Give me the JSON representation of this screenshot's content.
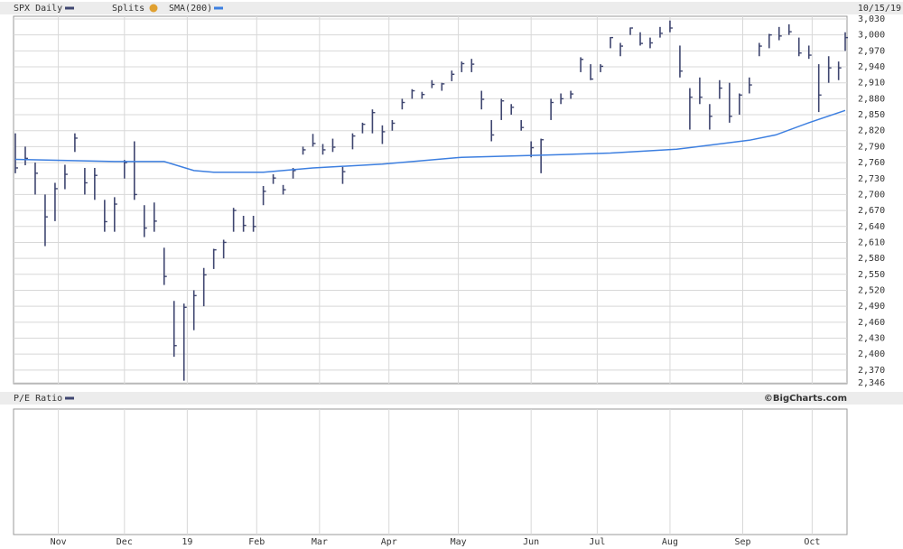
{
  "chart_data": {
    "type": "ohlc",
    "title": "SPX Daily",
    "annotation": "Splits",
    "date_label": "10/15/19",
    "lower_panel_title": "P/E Ratio",
    "credit": "©BigCharts.com",
    "color": "#3f4670",
    "grid": true,
    "x": [
      0,
      3,
      6,
      9,
      12,
      15,
      18,
      21,
      24,
      27,
      30,
      33,
      36,
      39,
      42,
      45,
      48,
      51,
      54,
      57,
      60,
      63,
      66,
      69,
      72,
      75,
      78,
      81,
      84,
      87,
      90,
      93,
      96,
      99,
      102,
      105,
      108,
      111,
      114,
      117,
      120,
      123,
      126,
      129,
      132,
      135,
      138,
      141,
      144,
      147,
      150,
      153,
      156,
      159,
      162,
      165,
      168,
      171,
      174,
      177,
      180,
      183,
      186,
      189,
      192,
      195,
      198,
      201,
      204,
      207,
      210,
      213,
      216,
      219,
      222,
      225,
      228,
      231,
      234,
      237,
      240,
      243,
      246,
      249,
      251
    ],
    "high": [
      2815,
      2790,
      2760,
      2700,
      2722,
      2756,
      2815,
      2750,
      2750,
      2690,
      2695,
      2765,
      2800,
      2680,
      2685,
      2600,
      2500,
      2495,
      2520,
      2562,
      2598,
      2615,
      2675,
      2660,
      2660,
      2716,
      2738,
      2718,
      2750,
      2790,
      2814,
      2795,
      2805,
      2752,
      2815,
      2835,
      2860,
      2830,
      2840,
      2880,
      2898,
      2893,
      2915,
      2910,
      2933,
      2950,
      2955,
      2895,
      2840,
      2880,
      2870,
      2840,
      2800,
      2805,
      2880,
      2890,
      2895,
      2958,
      2945,
      2945,
      2996,
      2985,
      3014,
      3005,
      2995,
      3015,
      3027,
      2980,
      2900,
      2920,
      2870,
      2915,
      2910,
      2890,
      2920,
      2985,
      3002,
      3015,
      3020,
      2995,
      2980,
      2945,
      2960,
      2950,
      3005
    ],
    "low": [
      2740,
      2755,
      2700,
      2603,
      2650,
      2710,
      2780,
      2700,
      2690,
      2630,
      2630,
      2730,
      2690,
      2620,
      2630,
      2530,
      2395,
      2350,
      2445,
      2490,
      2560,
      2580,
      2630,
      2630,
      2630,
      2680,
      2720,
      2700,
      2730,
      2775,
      2790,
      2775,
      2780,
      2720,
      2785,
      2815,
      2815,
      2795,
      2820,
      2860,
      2880,
      2880,
      2900,
      2895,
      2913,
      2930,
      2930,
      2860,
      2800,
      2840,
      2850,
      2820,
      2770,
      2740,
      2840,
      2870,
      2880,
      2930,
      2915,
      2930,
      2975,
      2960,
      3000,
      2980,
      2975,
      2995,
      3005,
      2920,
      2822,
      2870,
      2822,
      2880,
      2835,
      2850,
      2890,
      2960,
      2975,
      2990,
      3000,
      2960,
      2955,
      2855,
      2910,
      2915,
      2970
    ],
    "close": [
      2750,
      2768,
      2740,
      2658,
      2711,
      2738,
      2806,
      2722,
      2736,
      2649,
      2682,
      2760,
      2700,
      2637,
      2650,
      2546,
      2416,
      2488,
      2510,
      2549,
      2596,
      2610,
      2670,
      2642,
      2640,
      2706,
      2731,
      2709,
      2745,
      2784,
      2796,
      2784,
      2789,
      2743,
      2810,
      2832,
      2854,
      2818,
      2834,
      2873,
      2895,
      2888,
      2907,
      2908,
      2926,
      2946,
      2945,
      2879,
      2812,
      2876,
      2864,
      2826,
      2788,
      2803,
      2873,
      2880,
      2889,
      2954,
      2917,
      2941,
      2995,
      2979,
      3013,
      2984,
      2985,
      3003,
      3013,
      2932,
      2883,
      2883,
      2847,
      2900,
      2847,
      2887,
      2906,
      2979,
      3000,
      2998,
      3006,
      2966,
      2962,
      2887,
      2938,
      2938,
      2995
    ],
    "sma": {
      "name": "SMA(200)",
      "color": "#3d7fe0",
      "x": [
        0,
        30,
        45,
        54,
        60,
        75,
        90,
        111,
        135,
        165,
        180,
        200,
        222,
        230,
        240,
        251
      ],
      "values": [
        2766,
        2762,
        2762,
        2745,
        2742,
        2742,
        2750,
        2757,
        2770,
        2775,
        2778,
        2785,
        2802,
        2812,
        2835,
        2858
      ]
    },
    "xlim": [
      0,
      251
    ],
    "xticks": [
      {
        "value": 13,
        "label": "Nov"
      },
      {
        "value": 33,
        "label": "Dec"
      },
      {
        "value": 52,
        "label": "19"
      },
      {
        "value": 73,
        "label": "Feb"
      },
      {
        "value": 92,
        "label": "Mar"
      },
      {
        "value": 113,
        "label": "Apr"
      },
      {
        "value": 134,
        "label": "May"
      },
      {
        "value": 156,
        "label": "Jun"
      },
      {
        "value": 176,
        "label": "Jul"
      },
      {
        "value": 198,
        "label": "Aug"
      },
      {
        "value": 220,
        "label": "Sep"
      },
      {
        "value": 241,
        "label": "Oct"
      }
    ],
    "ylim": [
      2346,
      3030
    ],
    "yticks": [
      {
        "value": 2346,
        "label": "2,346"
      },
      {
        "value": 2370,
        "label": "2,370"
      },
      {
        "value": 2400,
        "label": "2,400"
      },
      {
        "value": 2430,
        "label": "2,430"
      },
      {
        "value": 2460,
        "label": "2,460"
      },
      {
        "value": 2490,
        "label": "2,490"
      },
      {
        "value": 2520,
        "label": "2,520"
      },
      {
        "value": 2550,
        "label": "2,550"
      },
      {
        "value": 2580,
        "label": "2,580"
      },
      {
        "value": 2610,
        "label": "2,610"
      },
      {
        "value": 2640,
        "label": "2,640"
      },
      {
        "value": 2670,
        "label": "2,670"
      },
      {
        "value": 2700,
        "label": "2,700"
      },
      {
        "value": 2730,
        "label": "2,730"
      },
      {
        "value": 2760,
        "label": "2,760"
      },
      {
        "value": 2790,
        "label": "2,790"
      },
      {
        "value": 2820,
        "label": "2,820"
      },
      {
        "value": 2850,
        "label": "2,850"
      },
      {
        "value": 2880,
        "label": "2,880"
      },
      {
        "value": 2910,
        "label": "2,910"
      },
      {
        "value": 2940,
        "label": "2,940"
      },
      {
        "value": 2970,
        "label": "2,970"
      },
      {
        "value": 3000,
        "label": "3,000"
      },
      {
        "value": 3030,
        "label": "3,030"
      }
    ]
  }
}
